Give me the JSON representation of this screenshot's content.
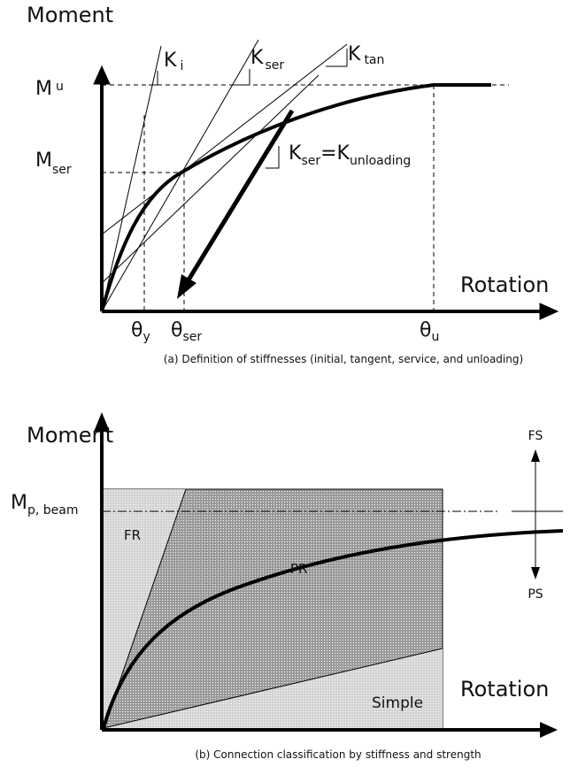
{
  "panel_a": {
    "y_axis_label": "Moment",
    "x_axis_label": "Rotation",
    "m_u": {
      "main": "M",
      "sub": "u"
    },
    "m_ser": {
      "main": "M",
      "sub": "ser"
    },
    "k_i": {
      "main": "K",
      "sub": "i"
    },
    "k_ser": {
      "main": "K",
      "sub": "ser"
    },
    "k_tan": {
      "main": "K",
      "sub": "tan"
    },
    "k_unloading": {
      "main": "K",
      "sub": "ser",
      "main2": "=K",
      "sub2": "unloading"
    },
    "theta_y": {
      "main": "θ",
      "sub": "y"
    },
    "theta_ser": {
      "main": "θ",
      "sub": "ser"
    },
    "theta_u": {
      "main": "θ",
      "sub": "u"
    },
    "caption": "(a) Definition of stiffnesses (initial, tangent, service, and unloading)"
  },
  "panel_b": {
    "y_axis_label": "Moment",
    "x_axis_label": "Rotation",
    "m_p_beam": {
      "main": "M",
      "sub": "p, beam"
    },
    "regions": [
      "FR",
      "PR",
      "Simple"
    ],
    "fs": "FS",
    "ps": "PS",
    "caption": "(b) Connection classification by stiffness and strength"
  }
}
